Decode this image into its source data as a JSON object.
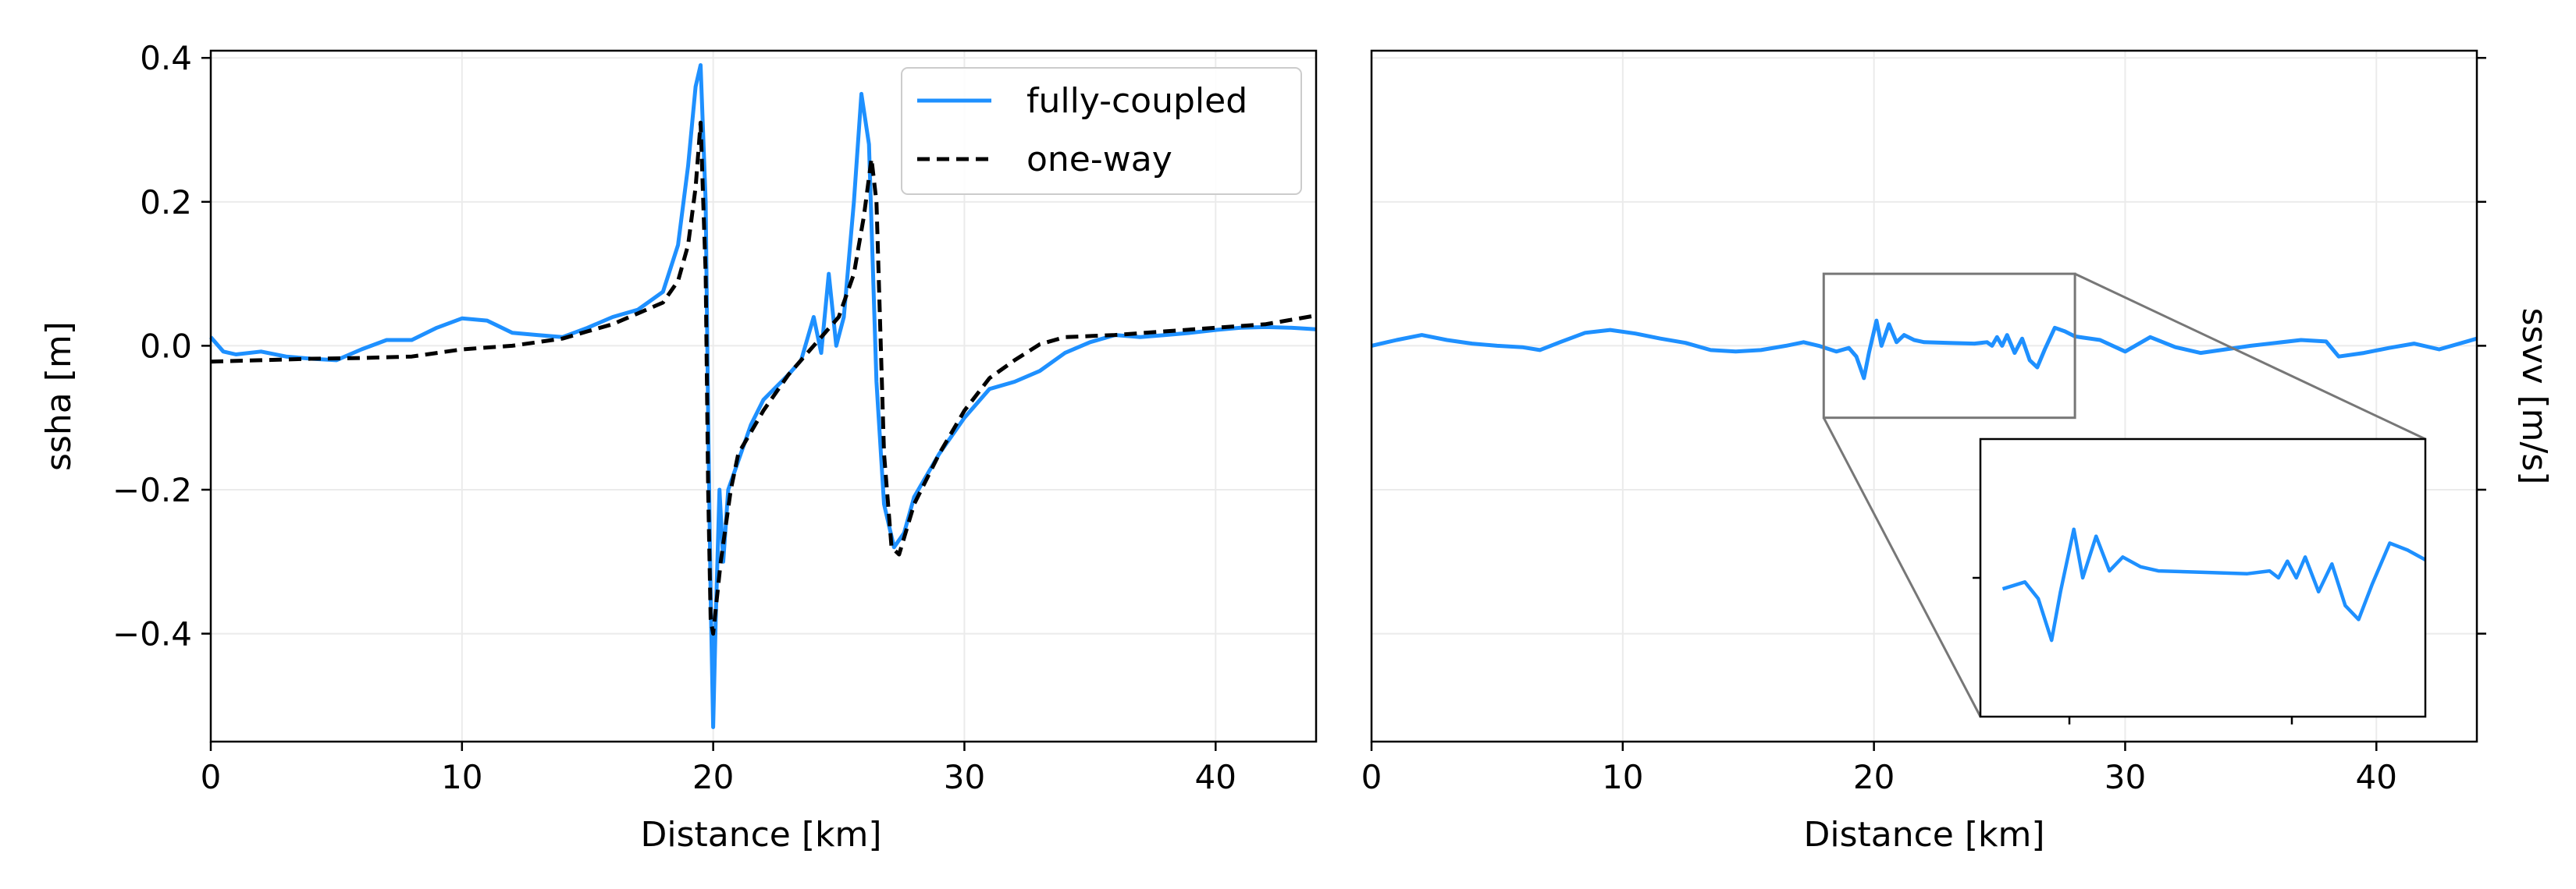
{
  "chart_data": [
    {
      "type": "line",
      "xlabel": "Distance [km]",
      "ylabel": "ssha [m]",
      "xlim": [
        0,
        44
      ],
      "ylim": [
        -0.55,
        0.41
      ],
      "x_ticks": [
        0,
        10,
        20,
        30,
        40
      ],
      "x_tick_labels": [
        "0",
        "10",
        "20",
        "30",
        "40"
      ],
      "y_ticks": [
        0.4,
        0.2,
        0.0,
        -0.2,
        -0.4
      ],
      "y_tick_labels": [
        "0.4",
        "0.2",
        "0.0",
        "−0.2",
        "−0.4"
      ],
      "grid": true,
      "legend_position": "top-right",
      "series": [
        {
          "name": "fully-coupled",
          "color": "#1e90ff",
          "style": "solid",
          "points": [
            [
              0,
              0.012
            ],
            [
              0.5,
              -0.008
            ],
            [
              1,
              -0.012
            ],
            [
              2,
              -0.008
            ],
            [
              3,
              -0.015
            ],
            [
              4,
              -0.018
            ],
            [
              5,
              -0.02
            ],
            [
              6,
              -0.005
            ],
            [
              7,
              0.008
            ],
            [
              8,
              0.008
            ],
            [
              9,
              0.025
            ],
            [
              10,
              0.038
            ],
            [
              11,
              0.035
            ],
            [
              12,
              0.018
            ],
            [
              13,
              0.015
            ],
            [
              14,
              0.012
            ],
            [
              15,
              0.025
            ],
            [
              16,
              0.04
            ],
            [
              17,
              0.05
            ],
            [
              18,
              0.075
            ],
            [
              18.6,
              0.14
            ],
            [
              19.0,
              0.25
            ],
            [
              19.3,
              0.36
            ],
            [
              19.5,
              0.39
            ],
            [
              19.7,
              0.2
            ],
            [
              19.8,
              -0.1
            ],
            [
              19.9,
              -0.35
            ],
            [
              20.0,
              -0.53
            ],
            [
              20.1,
              -0.38
            ],
            [
              20.25,
              -0.2
            ],
            [
              20.4,
              -0.3
            ],
            [
              20.6,
              -0.2
            ],
            [
              21,
              -0.16
            ],
            [
              21.5,
              -0.11
            ],
            [
              22,
              -0.075
            ],
            [
              23,
              -0.04
            ],
            [
              23.5,
              -0.02
            ],
            [
              24,
              0.04
            ],
            [
              24.3,
              -0.01
            ],
            [
              24.6,
              0.1
            ],
            [
              24.9,
              0.0
            ],
            [
              25.2,
              0.04
            ],
            [
              25.6,
              0.2
            ],
            [
              25.9,
              0.35
            ],
            [
              26.2,
              0.28
            ],
            [
              26.5,
              -0.05
            ],
            [
              26.8,
              -0.22
            ],
            [
              27.2,
              -0.28
            ],
            [
              27.6,
              -0.26
            ],
            [
              28,
              -0.21
            ],
            [
              29,
              -0.15
            ],
            [
              30,
              -0.1
            ],
            [
              31,
              -0.06
            ],
            [
              32,
              -0.05
            ],
            [
              33,
              -0.035
            ],
            [
              34,
              -0.01
            ],
            [
              35,
              0.005
            ],
            [
              36,
              0.015
            ],
            [
              37,
              0.012
            ],
            [
              38,
              0.015
            ],
            [
              39,
              0.018
            ],
            [
              40,
              0.022
            ],
            [
              41,
              0.025
            ],
            [
              42,
              0.026
            ],
            [
              43,
              0.025
            ],
            [
              44,
              0.023
            ]
          ]
        },
        {
          "name": "one-way",
          "color": "#000000",
          "style": "dashed",
          "points": [
            [
              0,
              -0.022
            ],
            [
              2,
              -0.02
            ],
            [
              4,
              -0.018
            ],
            [
              6,
              -0.017
            ],
            [
              8,
              -0.015
            ],
            [
              10,
              -0.005
            ],
            [
              12,
              0.0
            ],
            [
              14,
              0.01
            ],
            [
              15,
              0.02
            ],
            [
              16,
              0.03
            ],
            [
              17,
              0.045
            ],
            [
              18,
              0.06
            ],
            [
              18.6,
              0.09
            ],
            [
              19,
              0.14
            ],
            [
              19.3,
              0.22
            ],
            [
              19.5,
              0.31
            ],
            [
              19.7,
              0.1
            ],
            [
              19.8,
              -0.2
            ],
            [
              19.9,
              -0.38
            ],
            [
              20.0,
              -0.4
            ],
            [
              20.3,
              -0.3
            ],
            [
              20.7,
              -0.2
            ],
            [
              21,
              -0.15
            ],
            [
              22,
              -0.09
            ],
            [
              23,
              -0.04
            ],
            [
              24,
              0.0
            ],
            [
              25,
              0.04
            ],
            [
              25.6,
              0.1
            ],
            [
              26.0,
              0.18
            ],
            [
              26.3,
              0.26
            ],
            [
              26.5,
              0.2
            ],
            [
              26.8,
              -0.15
            ],
            [
              27.1,
              -0.28
            ],
            [
              27.4,
              -0.29
            ],
            [
              28,
              -0.22
            ],
            [
              29,
              -0.15
            ],
            [
              30,
              -0.09
            ],
            [
              31,
              -0.045
            ],
            [
              32,
              -0.02
            ],
            [
              33,
              0.002
            ],
            [
              34,
              0.012
            ],
            [
              36,
              0.015
            ],
            [
              38,
              0.02
            ],
            [
              40,
              0.025
            ],
            [
              42,
              0.03
            ],
            [
              44,
              0.042
            ]
          ]
        }
      ]
    },
    {
      "type": "line",
      "xlabel": "Distance [km]",
      "ylabel": "ssvv [m/s]",
      "xlim": [
        0,
        44
      ],
      "ylim": [
        -0.55,
        0.41
      ],
      "x_ticks": [
        0,
        10,
        20,
        30,
        40
      ],
      "x_tick_labels": [
        "0",
        "10",
        "20",
        "30",
        "40"
      ],
      "y_ticks": [
        0.4,
        0.2,
        0.0,
        -0.2,
        -0.4
      ],
      "y_tick_labels": [],
      "y_axis_side": "right",
      "grid": true,
      "series": [
        {
          "color": "#1e90ff",
          "style": "solid",
          "points": [
            [
              0,
              0.0
            ],
            [
              1,
              0.008
            ],
            [
              2,
              0.015
            ],
            [
              3,
              0.008
            ],
            [
              4,
              0.003
            ],
            [
              5,
              0.0
            ],
            [
              6,
              -0.002
            ],
            [
              6.7,
              -0.006
            ],
            [
              7.5,
              0.005
            ],
            [
              8.5,
              0.018
            ],
            [
              9.5,
              0.022
            ],
            [
              10.5,
              0.017
            ],
            [
              11.5,
              0.01
            ],
            [
              12.5,
              0.004
            ],
            [
              13.5,
              -0.006
            ],
            [
              14.5,
              -0.008
            ],
            [
              15.5,
              -0.006
            ],
            [
              16.5,
              0.0
            ],
            [
              17.2,
              0.005
            ],
            [
              17.8,
              0.0
            ],
            [
              18.5,
              -0.008
            ],
            [
              19.0,
              -0.003
            ],
            [
              19.3,
              -0.015
            ],
            [
              19.6,
              -0.045
            ],
            [
              19.8,
              -0.01
            ],
            [
              20.1,
              0.035
            ],
            [
              20.3,
              0.0
            ],
            [
              20.6,
              0.03
            ],
            [
              20.9,
              0.005
            ],
            [
              21.2,
              0.015
            ],
            [
              21.6,
              0.008
            ],
            [
              22,
              0.005
            ],
            [
              23,
              0.004
            ],
            [
              24,
              0.003
            ],
            [
              24.5,
              0.005
            ],
            [
              24.7,
              0.0
            ],
            [
              24.9,
              0.012
            ],
            [
              25.1,
              0.0
            ],
            [
              25.3,
              0.015
            ],
            [
              25.6,
              -0.01
            ],
            [
              25.9,
              0.01
            ],
            [
              26.2,
              -0.02
            ],
            [
              26.5,
              -0.03
            ],
            [
              26.8,
              -0.005
            ],
            [
              27.2,
              0.025
            ],
            [
              27.6,
              0.02
            ],
            [
              28,
              0.013
            ],
            [
              29,
              0.008
            ],
            [
              30,
              -0.008
            ],
            [
              31,
              0.012
            ],
            [
              32,
              -0.002
            ],
            [
              33,
              -0.01
            ],
            [
              34,
              -0.005
            ],
            [
              35,
              0.0
            ],
            [
              36,
              0.004
            ],
            [
              37,
              0.008
            ],
            [
              38,
              0.006
            ],
            [
              38.5,
              -0.015
            ],
            [
              39.5,
              -0.01
            ],
            [
              40.5,
              -0.003
            ],
            [
              41.5,
              0.003
            ],
            [
              42.5,
              -0.005
            ],
            [
              43.5,
              0.005
            ],
            [
              44,
              0.01
            ]
          ]
        }
      ],
      "inset": {
        "source_xlim": [
          18,
          28
        ],
        "source_ylim": [
          -0.1,
          0.1
        ],
        "series_color": "#1e90ff",
        "connector_color": "#777777"
      }
    }
  ]
}
